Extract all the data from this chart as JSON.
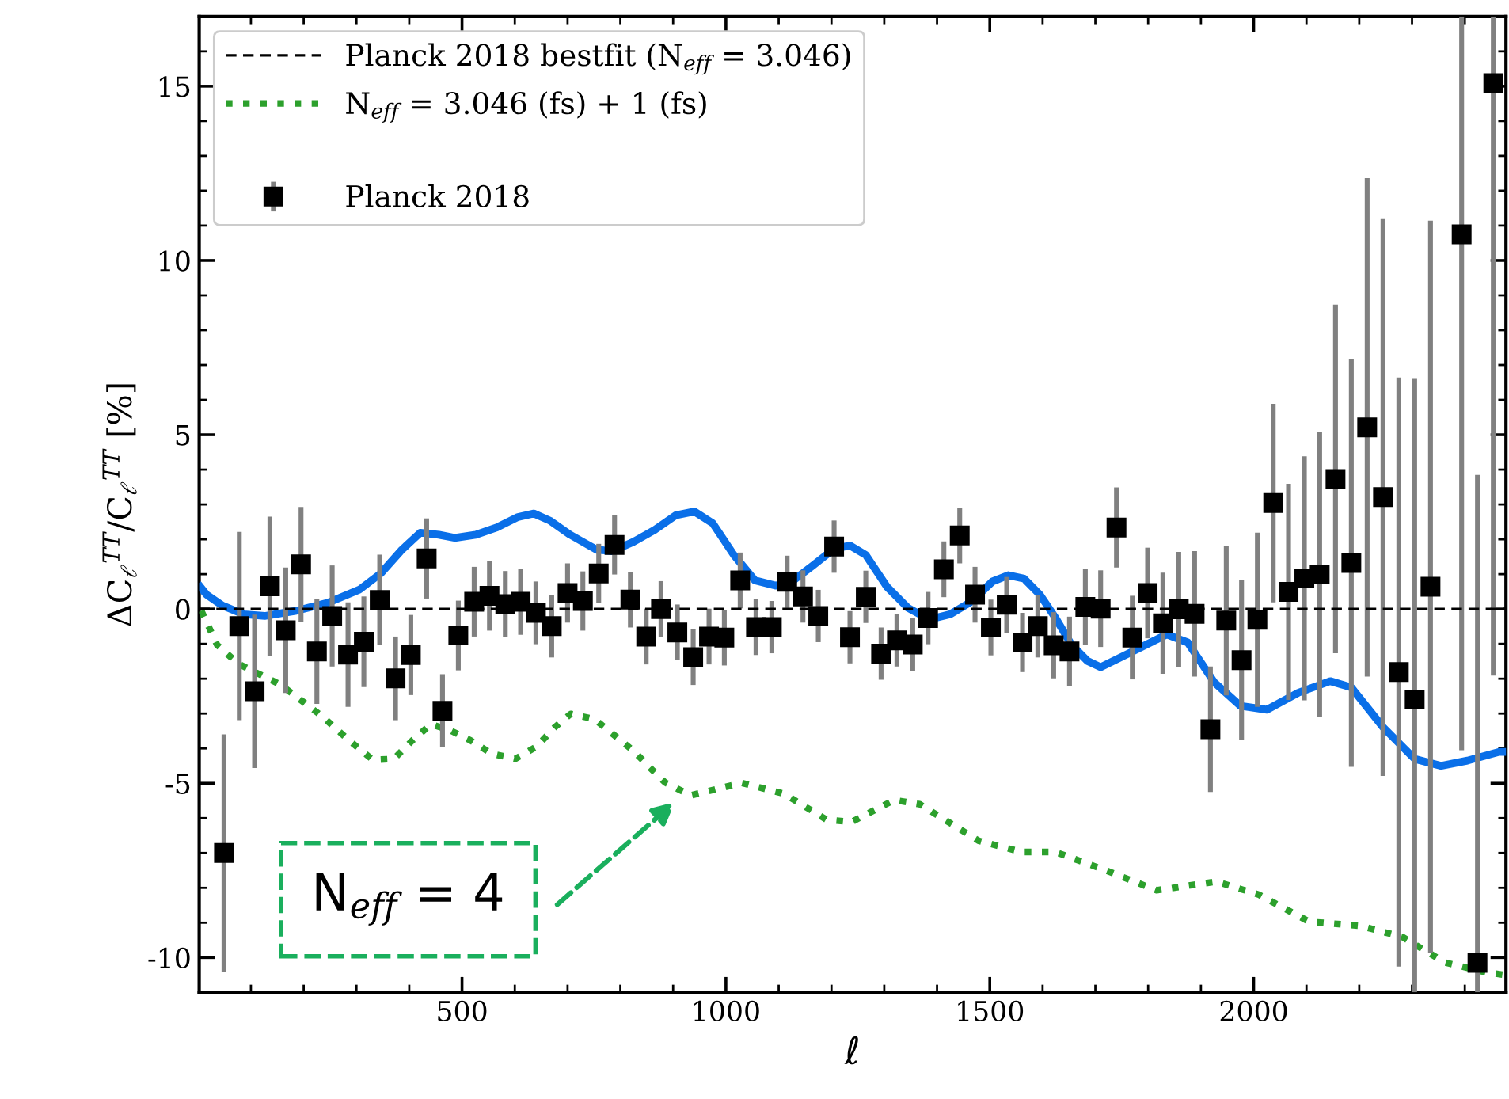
{
  "chart_data": {
    "type": "line",
    "xlabel": "ℓ",
    "ylabel": "ΔC$_{ℓ}$$^{TT}$/C$_{ℓ}$$^{TT}$ [%]",
    "xlim": [
      2,
      2478
    ],
    "ylim": [
      -11,
      17
    ],
    "xticks": [
      500,
      1000,
      1500,
      2000
    ],
    "yticks": [
      -10,
      -5,
      0,
      5,
      10,
      15
    ],
    "grid": false,
    "legend": "top left",
    "annotations": [
      "N$_{eff}$ = 4"
    ],
    "series": [
      {
        "name": "Planck 2018 bestfit (N$_{eff}$ = 3.046)",
        "line_style": "dashed",
        "color": "#000000",
        "x": [
          2,
          2478
        ],
        "values": [
          0,
          0
        ]
      },
      {
        "name": "N$_{eff}$ = 3.046 (fs) + 1 (fs)",
        "line_style": "dotted",
        "color": "#2ca02c",
        "x": [
          6,
          36,
          76,
          116,
          156,
          196,
          236,
          286,
          331,
          371,
          406,
          441,
          476,
          516,
          556,
          601,
          641,
          676,
          706,
          751,
          786,
          825,
          860,
          885,
          933,
          1030,
          1110,
          1190,
          1238,
          1319,
          1367,
          1479,
          1560,
          1624,
          1720,
          1816,
          1929,
          2009,
          2105,
          2202,
          2282,
          2362,
          2442,
          2478
        ],
        "values": [
          -0.05,
          -1.03,
          -1.57,
          -1.87,
          -2.17,
          -2.63,
          -3.09,
          -3.77,
          -4.33,
          -4.3,
          -3.77,
          -3.31,
          -3.47,
          -3.77,
          -4.15,
          -4.3,
          -3.95,
          -3.39,
          -3.01,
          -3.16,
          -3.59,
          -4.07,
          -4.61,
          -4.98,
          -5.35,
          -4.99,
          -5.3,
          -6.04,
          -6.11,
          -5.48,
          -5.6,
          -6.65,
          -6.97,
          -6.97,
          -7.5,
          -8.07,
          -7.82,
          -8.19,
          -8.97,
          -9.09,
          -9.41,
          -10.14,
          -10.43,
          -10.5
        ]
      },
      {
        "line_style": "solid",
        "color": "#0a6fe8",
        "x": [
          4,
          16,
          46,
          86,
          126,
          186,
          246,
          306,
          346,
          386,
          421,
          456,
          486,
          526,
          566,
          606,
          636,
          666,
          705,
          755,
          785,
          825,
          865,
          905,
          940,
          975,
          1015,
          1055,
          1095,
          1125,
          1165,
          1205,
          1235,
          1265,
          1305,
          1345,
          1385,
          1425,
          1465,
          1505,
          1535,
          1565,
          1595,
          1625,
          1655,
          1685,
          1710,
          1765,
          1835,
          1875,
          1925,
          1975,
          2025,
          2085,
          2145,
          2185,
          2245,
          2305,
          2355,
          2405,
          2465,
          2478
        ],
        "values": [
          0.64,
          0.41,
          0.1,
          -0.15,
          -0.2,
          -0.05,
          0.18,
          0.56,
          1.02,
          1.7,
          2.19,
          2.13,
          2.04,
          2.13,
          2.34,
          2.64,
          2.74,
          2.54,
          2.13,
          1.7,
          1.66,
          1.93,
          2.27,
          2.69,
          2.8,
          2.46,
          1.55,
          0.82,
          0.67,
          0.79,
          1.25,
          1.73,
          1.82,
          1.55,
          0.64,
          0.03,
          -0.3,
          -0.15,
          0.21,
          0.79,
          0.97,
          0.87,
          0.41,
          -0.27,
          -1.03,
          -1.49,
          -1.67,
          -1.26,
          -0.73,
          -0.96,
          -2.1,
          -2.78,
          -2.89,
          -2.4,
          -2.07,
          -2.25,
          -3.39,
          -4.3,
          -4.5,
          -4.35,
          -4.1,
          -4.1
        ]
      },
      {
        "name": "Planck 2018",
        "type": "scatter",
        "marker": "square",
        "color": "#000000",
        "x": [
          49,
          78,
          107,
          136,
          166,
          195,
          225,
          254,
          284,
          314,
          344,
          374,
          403,
          433,
          463,
          493,
          523,
          552,
          582,
          611,
          640,
          670,
          700,
          729,
          759,
          789,
          819,
          849,
          877,
          908,
          938,
          968,
          997,
          1027,
          1057,
          1087,
          1116,
          1146,
          1175,
          1205,
          1235,
          1265,
          1294,
          1324,
          1354,
          1383,
          1413,
          1443,
          1472,
          1502,
          1532,
          1562,
          1591,
          1621,
          1651,
          1681,
          1710,
          1740,
          1770,
          1799,
          1828,
          1858,
          1888,
          1918,
          1948,
          1977,
          2007,
          2037,
          2066,
          2096,
          2125,
          2155,
          2185,
          2215,
          2245,
          2275,
          2305,
          2335,
          2394,
          2424,
          2454
        ],
        "values": [
          -7.0,
          -0.49,
          -2.36,
          0.65,
          -0.61,
          1.28,
          -1.22,
          -0.2,
          -1.31,
          -0.94,
          0.26,
          -1.99,
          -1.32,
          1.45,
          -2.92,
          -0.76,
          0.21,
          0.38,
          0.14,
          0.21,
          -0.11,
          -0.49,
          0.46,
          0.23,
          1.02,
          1.84,
          0.27,
          -0.79,
          0.0,
          -0.67,
          -1.38,
          -0.79,
          -0.82,
          0.82,
          -0.52,
          -0.52,
          0.78,
          0.36,
          -0.2,
          1.79,
          -0.81,
          0.35,
          -1.28,
          -0.9,
          -1.02,
          -0.26,
          1.14,
          2.11,
          0.41,
          -0.53,
          0.12,
          -0.96,
          -0.49,
          -1.04,
          -1.22,
          0.06,
          0.01,
          2.34,
          -0.82,
          0.46,
          -0.41,
          -0.01,
          -0.14,
          -3.45,
          -0.33,
          -1.47,
          -0.31,
          3.04,
          0.49,
          0.88,
          0.99,
          3.73,
          1.32,
          5.21,
          3.21,
          -1.81,
          -2.6,
          0.64,
          10.75,
          -10.15,
          15.09
        ],
        "errors": [
          3.4,
          2.7,
          2.2,
          2.0,
          1.8,
          1.65,
          1.5,
          1.45,
          1.5,
          1.3,
          1.3,
          1.2,
          1.15,
          1.15,
          1.05,
          1.0,
          1.0,
          1.0,
          0.95,
          0.95,
          0.9,
          0.9,
          0.85,
          0.85,
          0.85,
          0.85,
          0.8,
          0.8,
          0.8,
          0.8,
          0.8,
          0.8,
          0.8,
          0.8,
          0.8,
          0.75,
          0.75,
          0.75,
          0.75,
          0.75,
          0.75,
          0.75,
          0.75,
          0.75,
          0.75,
          0.75,
          0.8,
          0.8,
          0.8,
          0.8,
          0.8,
          0.85,
          0.9,
          0.95,
          1.0,
          1.1,
          1.1,
          1.15,
          1.2,
          1.3,
          1.45,
          1.65,
          1.8,
          1.8,
          2.15,
          2.3,
          2.5,
          2.85,
          3.1,
          3.5,
          4.1,
          5.0,
          5.85,
          7.15,
          8.0,
          8.45,
          [
            -11,
            6.6
          ],
          10.5,
          [
            -4.05,
            17
          ],
          [
            -11,
            3.85
          ],
          [
            -1.91,
            17
          ]
        ]
      }
    ]
  }
}
